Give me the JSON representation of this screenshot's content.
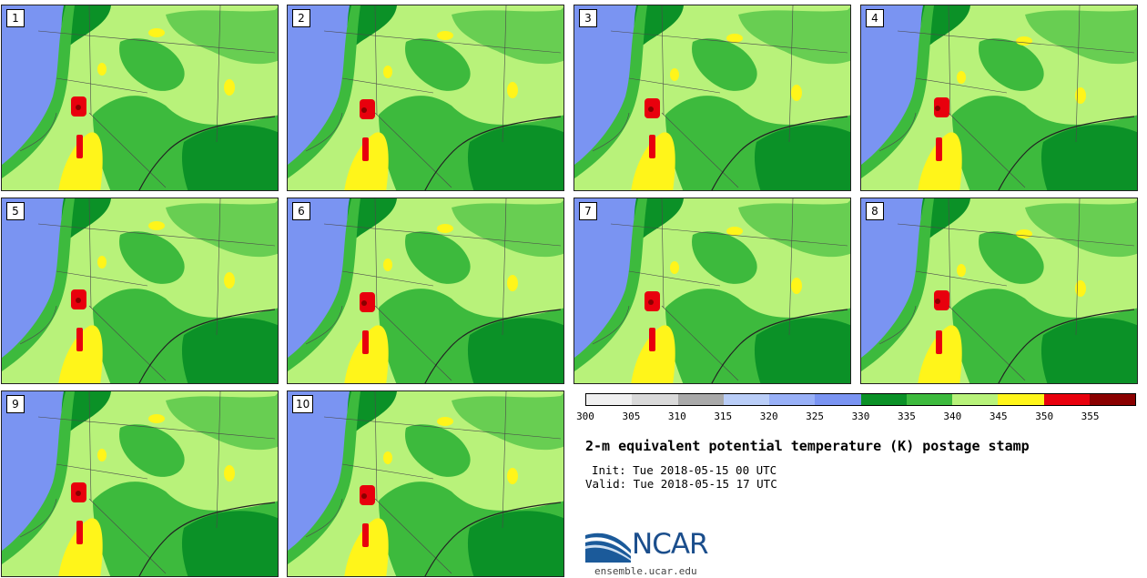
{
  "panels": [
    {
      "label": "1"
    },
    {
      "label": "2"
    },
    {
      "label": "3"
    },
    {
      "label": "4"
    },
    {
      "label": "5"
    },
    {
      "label": "6"
    },
    {
      "label": "7"
    },
    {
      "label": "8"
    },
    {
      "label": "9"
    },
    {
      "label": "10"
    }
  ],
  "colorbar": {
    "ticks": [
      "300",
      "305",
      "310",
      "315",
      "320",
      "325",
      "330",
      "335",
      "340",
      "345",
      "350",
      "355"
    ],
    "colors": [
      "#f0f0f0",
      "#d9d9d9",
      "#a9a9a9",
      "#b9cdf7",
      "#98b0f7",
      "#7a94f2",
      "#0b9127",
      "#3dba3d",
      "#b8f27a",
      "#fff51a",
      "#e8000d",
      "#8a0000"
    ]
  },
  "map_colors": {
    "land": "#b8f27a",
    "mid": "#3dba3d",
    "dark": "#0b9127",
    "cool": "#7a94f2",
    "warm": "#fff51a",
    "hot": "#e8000d",
    "hottest": "#8a0000"
  },
  "title": "2-m equivalent potential temperature (K) postage stamp",
  "init": "Init: Tue 2018-05-15 00 UTC",
  "valid": "Valid: Tue 2018-05-15 17 UTC",
  "logo": {
    "text": "NCAR",
    "url": "ensemble.ucar.edu"
  }
}
